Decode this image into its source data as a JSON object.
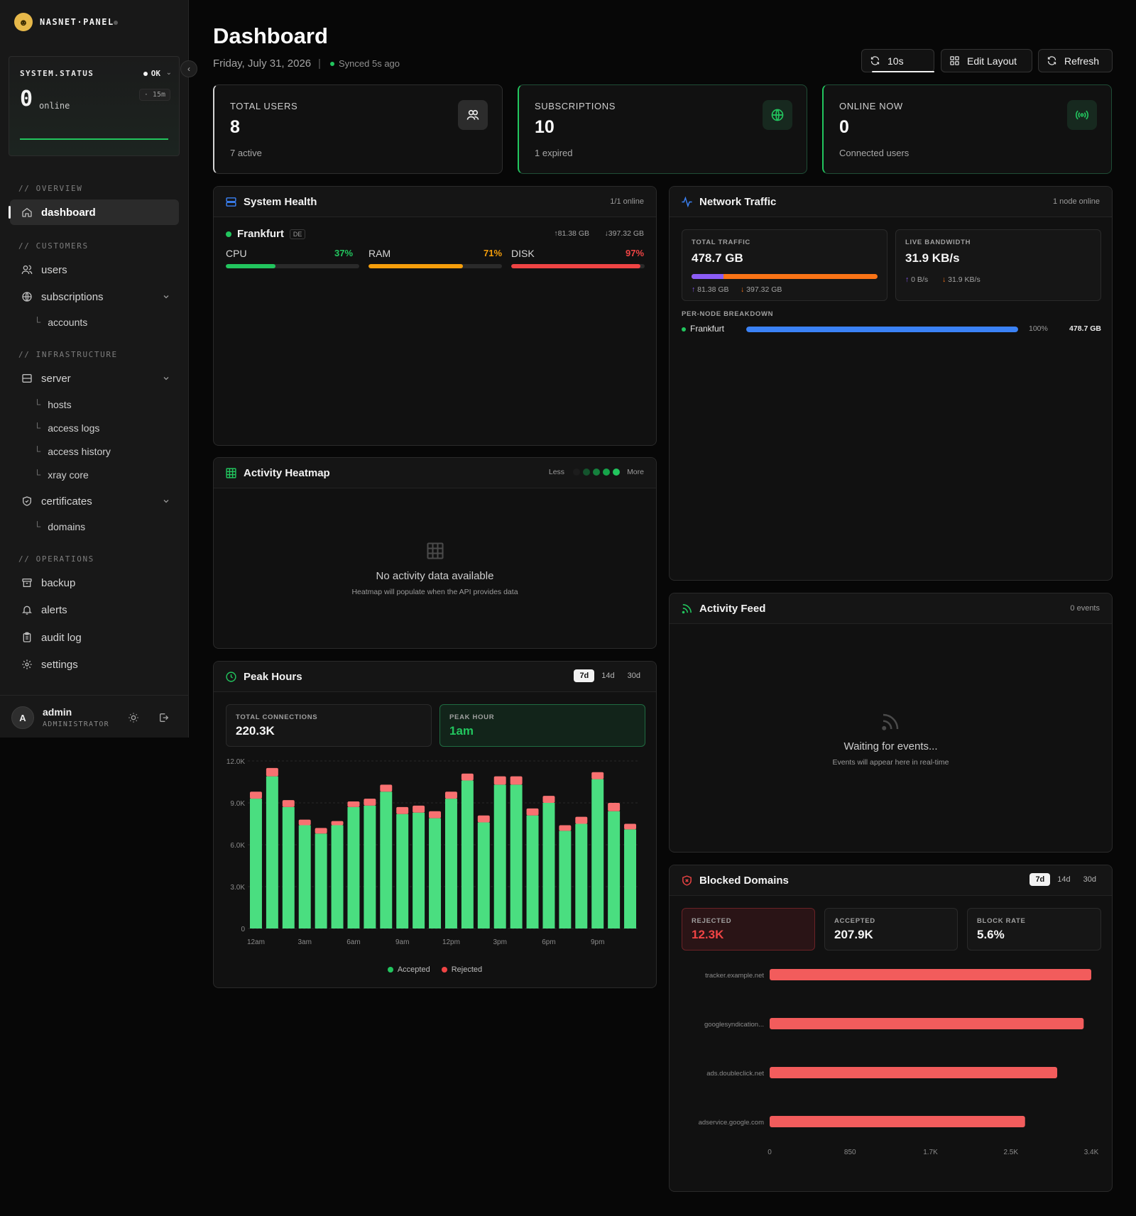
{
  "brand": {
    "name": "NASNET·PANEL"
  },
  "system_status": {
    "title": "SYSTEM.STATUS",
    "state": "OK",
    "count": "0",
    "count_label": "online",
    "window": "· 15m"
  },
  "sidebar": {
    "sections": {
      "overview": "// OVERVIEW",
      "customers": "// CUSTOMERS",
      "infrastructure": "// INFRASTRUCTURE",
      "operations": "// OPERATIONS"
    },
    "items": {
      "dashboard": "dashboard",
      "users": "users",
      "subscriptions": "subscriptions",
      "accounts": "accounts",
      "server": "server",
      "hosts": "hosts",
      "access_logs": "access logs",
      "access_history": "access history",
      "xray_core": "xray core",
      "certificates": "certificates",
      "domains": "domains",
      "backup": "backup",
      "alerts": "alerts",
      "audit_log": "audit log",
      "settings": "settings"
    },
    "sub_corner": "└"
  },
  "user": {
    "initial": "A",
    "name": "admin",
    "role": "ADMINISTRATOR"
  },
  "header": {
    "title": "Dashboard",
    "date": "Friday, July 31, 2026",
    "separator": "|",
    "synced": "Synced 5s ago",
    "interval": "10s",
    "edit_layout": "Edit Layout",
    "refresh": "Refresh"
  },
  "stats": [
    {
      "label": "TOTAL USERS",
      "value": "8",
      "sub": "7 active",
      "icon": "users-icon"
    },
    {
      "label": "SUBSCRIPTIONS",
      "value": "10",
      "sub": "1 expired",
      "icon": "globe-icon"
    },
    {
      "label": "ONLINE NOW",
      "value": "0",
      "sub": "Connected users",
      "icon": "broadcast-icon"
    }
  ],
  "system_health": {
    "title": "System Health",
    "online": "1/1 online",
    "node": {
      "name": "Frankfurt",
      "country": "DE",
      "up": "↑81.38 GB",
      "down": "↓397.32 GB"
    },
    "resources": [
      {
        "label": "CPU",
        "pct": "37%",
        "value": 37,
        "color": "#22c55e"
      },
      {
        "label": "RAM",
        "pct": "71%",
        "value": 71,
        "color": "#f59e0b"
      },
      {
        "label": "DISK",
        "pct": "97%",
        "value": 97,
        "color": "#ef4444"
      }
    ]
  },
  "network": {
    "title": "Network Traffic",
    "nodes_online": "1 node online",
    "total_label": "TOTAL TRAFFIC",
    "total_value": "478.7 GB",
    "up_share": 0.17,
    "up": "81.38 GB",
    "down": "397.32 GB",
    "bandwidth_label": "LIVE BANDWIDTH",
    "bandwidth_value": "31.9 KB/s",
    "bw_up": "0 B/s",
    "bw_down": "31.9 KB/s",
    "breakdown_label": "PER-NODE BREAKDOWN",
    "breakdown": [
      {
        "name": "Frankfurt",
        "pct": "100%",
        "share": 1.0,
        "value": "478.7 GB"
      }
    ]
  },
  "heatmap": {
    "title": "Activity Heatmap",
    "less": "Less",
    "more": "More",
    "empty_title": "No activity data available",
    "empty_sub": "Heatmap will populate when the API provides data"
  },
  "feed": {
    "title": "Activity Feed",
    "count": "0 events",
    "empty_title": "Waiting for events...",
    "empty_sub": "Events will appear here in real-time"
  },
  "peak_hours": {
    "title": "Peak Hours",
    "ranges": [
      "7d",
      "14d",
      "30d"
    ],
    "total_label": "TOTAL CONNECTIONS",
    "total_value": "220.3K",
    "peak_label": "PEAK HOUR",
    "peak_value": "1am",
    "legend": [
      "Accepted",
      "Rejected"
    ]
  },
  "blocked": {
    "title": "Blocked Domains",
    "ranges": [
      "7d",
      "14d",
      "30d"
    ],
    "rejected_label": "REJECTED",
    "rejected_value": "12.3K",
    "accepted_label": "ACCEPTED",
    "accepted_value": "207.9K",
    "rate_label": "BLOCK RATE",
    "rate_value": "5.6%"
  },
  "colors": {
    "accent": "#22c55e",
    "danger": "#ef4444",
    "warn": "#f59e0b",
    "blue": "#3b82f6",
    "purple": "#8b5cf6",
    "orange": "#f97316",
    "accepted": "#4ade80",
    "rejected": "#f87171"
  },
  "chart_data": [
    {
      "type": "bar",
      "stacked": true,
      "categories": [
        "12am",
        "1am",
        "2am",
        "3am",
        "4am",
        "5am",
        "6am",
        "7am",
        "8am",
        "9am",
        "10am",
        "11am",
        "12pm",
        "1pm",
        "2pm",
        "3pm",
        "4pm",
        "5pm",
        "6pm",
        "7pm",
        "8pm",
        "9pm",
        "10pm",
        "11pm"
      ],
      "x_tick_labels": [
        "12am",
        "3am",
        "6am",
        "9am",
        "12pm",
        "3pm",
        "6pm",
        "9pm"
      ],
      "series": [
        {
          "name": "Accepted",
          "values": [
            9300,
            10900,
            8700,
            7400,
            6800,
            7400,
            8700,
            8800,
            9800,
            8200,
            8300,
            7900,
            9300,
            10600,
            7600,
            10300,
            10300,
            8100,
            9000,
            7000,
            7500,
            10700,
            8400,
            7100
          ]
        },
        {
          "name": "Rejected",
          "values": [
            500,
            600,
            500,
            400,
            400,
            300,
            400,
            500,
            500,
            500,
            500,
            500,
            500,
            500,
            500,
            600,
            600,
            500,
            500,
            400,
            500,
            500,
            600,
            400
          ]
        }
      ],
      "y_ticks": [
        "0",
        "3.0K",
        "6.0K",
        "9.0K",
        "12.0K"
      ],
      "ylim": [
        0,
        12000
      ]
    },
    {
      "type": "bar",
      "orientation": "horizontal",
      "categories": [
        "tracker.example.net",
        "googlesyndication...",
        "ads.doubleclick.net",
        "adservice.google.com"
      ],
      "values": [
        3400,
        3320,
        3040,
        2700
      ],
      "x_ticks": [
        "0",
        "850",
        "1.7K",
        "2.5K",
        "3.4K"
      ],
      "xlim": [
        0,
        3400
      ]
    }
  ]
}
